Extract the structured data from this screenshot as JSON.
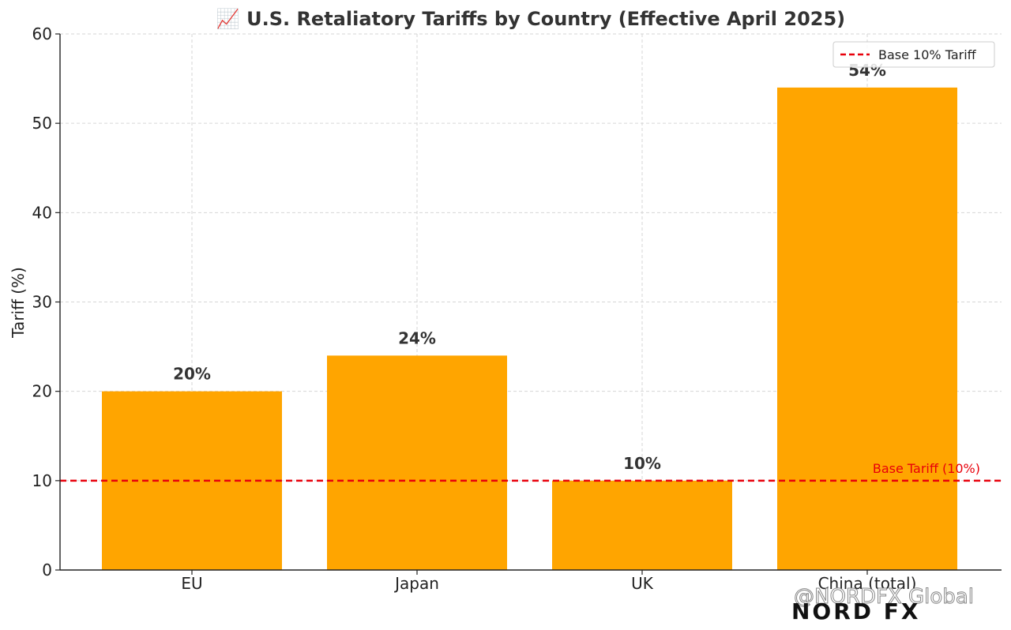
{
  "chart_data": {
    "type": "bar",
    "title": "📈 U.S. Retaliatory Tariffs by Country (Effective April 2025)",
    "xlabel": "",
    "ylabel": "Tariff (%)",
    "categories": [
      "EU",
      "Japan",
      "UK",
      "China (total)"
    ],
    "values": [
      20,
      24,
      10,
      54
    ],
    "data_labels": [
      "20%",
      "24%",
      "10%",
      "54%"
    ],
    "ylim": [
      0,
      60
    ],
    "yticks": [
      0,
      10,
      20,
      30,
      40,
      50,
      60
    ],
    "grid": true,
    "bar_color": "#FFA500",
    "reference_line": {
      "value": 10,
      "color": "#e8000b",
      "style": "dashed",
      "legend_label": "Base 10% Tariff",
      "annotation": "Base Tariff (10%)"
    },
    "legend_position": "top-right"
  },
  "watermark": {
    "text": "@NORDFX Global",
    "logo": "NORD FX"
  }
}
